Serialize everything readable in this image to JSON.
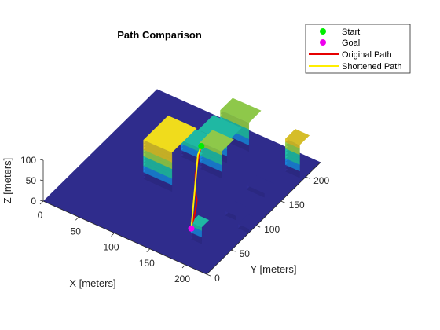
{
  "chart_data": {
    "type": "surface3d",
    "title": "Path Comparison",
    "xlabel": "X [meters]",
    "ylabel": "Y [meters]",
    "zlabel": "Z [meters]",
    "x_ticks": [
      0,
      50,
      100,
      150,
      200
    ],
    "y_ticks": [
      0,
      50,
      100,
      150,
      200
    ],
    "z_ticks": [
      0,
      50,
      100
    ],
    "xlim": [
      0,
      230
    ],
    "ylim": [
      0,
      230
    ],
    "zlim": [
      0,
      100
    ],
    "ground_color": "#2f2c8c",
    "colormap": [
      "#2f2c8c",
      "#1a7fd6",
      "#1fb8a3",
      "#8ec84a",
      "#d5bd29",
      "#f0dc1c"
    ],
    "buildings": [
      {
        "x": [
          110,
          150
        ],
        "y": [
          200,
          225
        ],
        "h": 70
      },
      {
        "x": [
          100,
          140
        ],
        "y": [
          170,
          200
        ],
        "h": 50
      },
      {
        "x": [
          90,
          120
        ],
        "y": [
          150,
          175
        ],
        "h": 40
      },
      {
        "x": [
          120,
          150
        ],
        "y": [
          145,
          170
        ],
        "h": 65
      },
      {
        "x": [
          75,
          115
        ],
        "y": [
          95,
          145
        ],
        "h": 95
      },
      {
        "x": [
          205,
          225
        ],
        "y": [
          195,
          215
        ],
        "h": 80
      },
      {
        "x": [
          185,
          210
        ],
        "y": [
          145,
          165
        ],
        "h": 10
      },
      {
        "x": [
          190,
          205
        ],
        "y": [
          95,
          115
        ],
        "h": 10
      },
      {
        "x": [
          215,
          230
        ],
        "y": [
          85,
          105
        ],
        "h": 10
      },
      {
        "x": [
          180,
          195
        ],
        "y": [
          40,
          55
        ],
        "h": 40
      }
    ],
    "series": [
      {
        "name": "Start",
        "kind": "marker",
        "color": "#00ee00",
        "x": 125,
        "y": 140,
        "z": 65
      },
      {
        "name": "Goal",
        "kind": "marker",
        "color": "#ee00ee",
        "x": 170,
        "y": 55,
        "z": 0
      },
      {
        "name": "Original Path",
        "kind": "line",
        "color": "#e60000",
        "points": [
          [
            125,
            140,
            65
          ],
          [
            126,
            134,
            54
          ],
          [
            129,
            126,
            40
          ],
          [
            132,
            118,
            28
          ],
          [
            136,
            112,
            20
          ],
          [
            140,
            106,
            15
          ],
          [
            145,
            100,
            10
          ],
          [
            150,
            95,
            7
          ],
          [
            154,
            88,
            4
          ],
          [
            157,
            82,
            2
          ],
          [
            160,
            76,
            1
          ],
          [
            163,
            70,
            0
          ],
          [
            166,
            62,
            0
          ],
          [
            170,
            55,
            0
          ]
        ]
      },
      {
        "name": "Shortened Path",
        "kind": "line",
        "color": "#ffee00",
        "points": [
          [
            125,
            140,
            65
          ],
          [
            125,
            133,
            52
          ],
          [
            170,
            55,
            0
          ]
        ]
      }
    ],
    "legend_position": "top-right",
    "grid": false
  }
}
